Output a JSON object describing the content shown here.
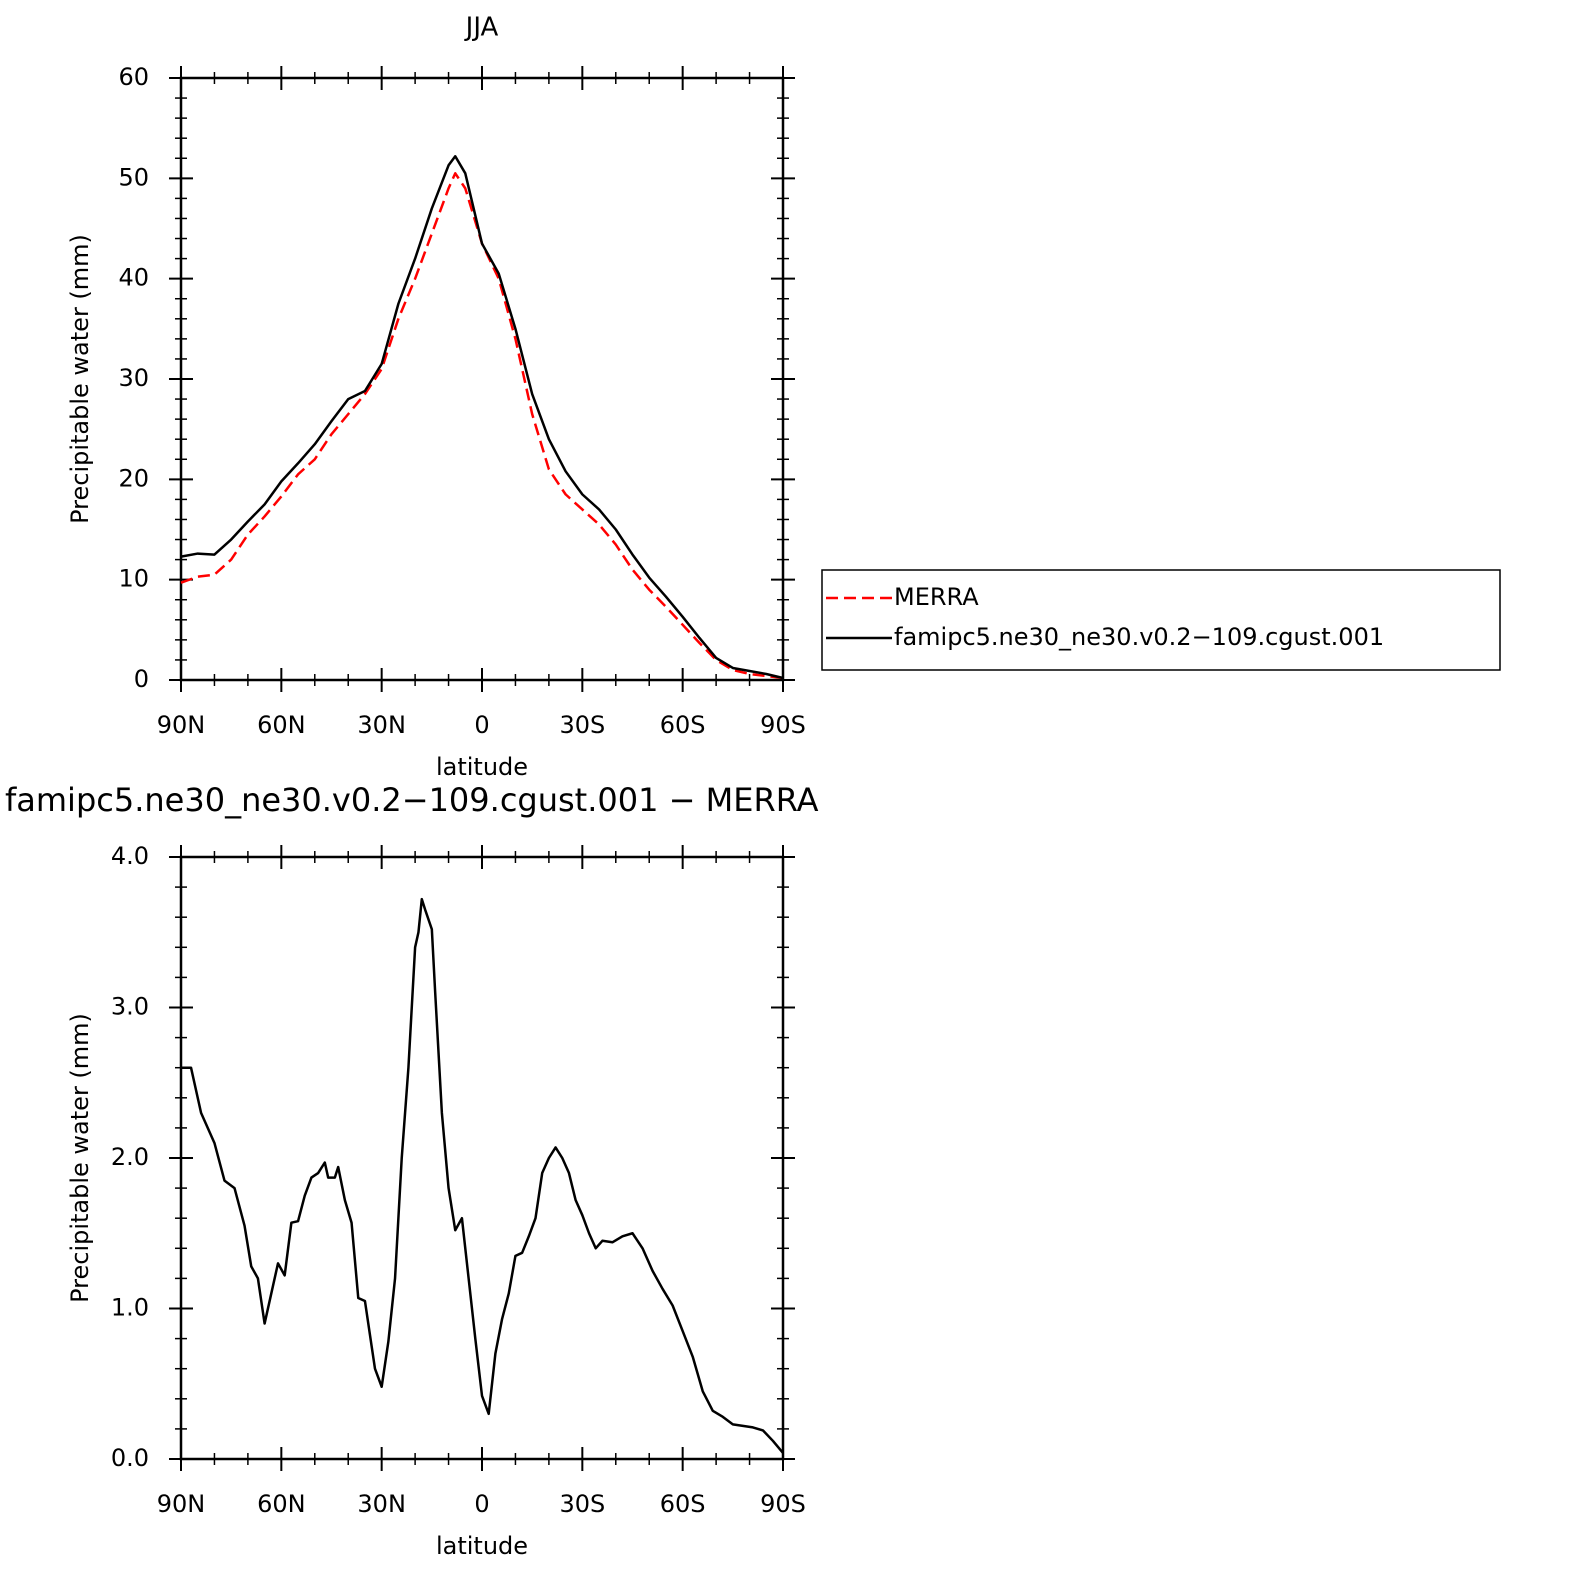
{
  "chart_data": [
    {
      "type": "line",
      "title": "JJA",
      "x_label": "latitude",
      "y_label": "Precipitable water (mm)",
      "x": [
        90,
        85,
        80,
        75,
        70,
        65,
        60,
        55,
        50,
        45,
        40,
        35,
        30,
        25,
        20,
        15,
        10,
        8,
        5,
        0,
        -5,
        -10,
        -15,
        -20,
        -25,
        -30,
        -35,
        -40,
        -45,
        -50,
        -55,
        -60,
        -65,
        -70,
        -75,
        -80,
        -85,
        -90
      ],
      "series": [
        {
          "name": "MERRA",
          "color": "#ff0000",
          "dash": true,
          "values": [
            9.7,
            10.3,
            10.5,
            12.0,
            14.5,
            16.3,
            18.3,
            20.5,
            22.0,
            24.5,
            26.5,
            28.5,
            31,
            36,
            40,
            44.5,
            49,
            50.5,
            49,
            43.5,
            40,
            34,
            26.5,
            21,
            18.5,
            17,
            15.5,
            13.5,
            11,
            9,
            7.3,
            5.5,
            3.7,
            2.0,
            1.0,
            0.6,
            0.4,
            0.2
          ]
        },
        {
          "name": "famipc5.ne30_ne30.v0.2−109.cgust.001",
          "color": "#000000",
          "dash": false,
          "values": [
            12.3,
            12.6,
            12.5,
            14.0,
            15.8,
            17.5,
            19.8,
            21.6,
            23.5,
            25.8,
            28.0,
            28.8,
            31.5,
            37.5,
            42.0,
            47.0,
            51.3,
            52.2,
            50.5,
            43.5,
            40.5,
            35,
            28.5,
            24,
            20.8,
            18.5,
            17,
            15,
            12.5,
            10.2,
            8.3,
            6.3,
            4.2,
            2.2,
            1.2,
            0.9,
            0.6,
            0.2
          ]
        }
      ],
      "xlim": [
        90,
        -90
      ],
      "xticks": [
        {
          "value": 90,
          "label": "90N"
        },
        {
          "value": 60,
          "label": "60N"
        },
        {
          "value": 30,
          "label": "30N"
        },
        0,
        {
          "value": -30,
          "label": "30S"
        },
        {
          "value": -60,
          "label": "60S"
        },
        {
          "value": -90,
          "label": "90S"
        }
      ],
      "ylim": [
        0,
        60
      ],
      "yticks": [
        0,
        10,
        20,
        30,
        40,
        50,
        60
      ],
      "legend": "right"
    },
    {
      "type": "line",
      "title": "famipc5.ne30_ne30.v0.2−109.cgust.001 − MERRA",
      "x_label": "latitude",
      "y_label": "Precipitable water (mm)",
      "x": [
        90,
        87,
        84,
        80,
        77,
        74,
        71,
        69,
        67,
        65,
        63,
        61,
        59,
        57,
        55,
        53,
        51,
        49,
        47,
        46,
        44,
        43,
        41,
        39,
        37,
        35,
        33,
        32,
        30,
        28,
        26,
        24,
        22,
        20,
        19,
        18,
        17,
        15,
        14,
        12,
        10,
        8,
        6,
        4,
        2,
        0,
        -2,
        -4,
        -6,
        -8,
        -10,
        -12,
        -14,
        -16,
        -18,
        -20,
        -22,
        -24,
        -26,
        -28,
        -30,
        -32,
        -34,
        -36,
        -39,
        -42,
        -45,
        -48,
        -51,
        -54,
        -57,
        -60,
        -63,
        -66,
        -69,
        -72,
        -75,
        -78,
        -81,
        -84,
        -87,
        -90
      ],
      "series": [
        {
          "name": "famipc5.ne30_ne30.v0.2−109.cgust.001 − MERRA",
          "color": "#000000",
          "dash": false,
          "values": [
            2.6,
            2.6,
            2.3,
            2.1,
            1.85,
            1.8,
            1.55,
            1.28,
            1.2,
            0.9,
            1.1,
            1.3,
            1.22,
            1.57,
            1.58,
            1.75,
            1.87,
            1.9,
            1.97,
            1.87,
            1.87,
            1.94,
            1.72,
            1.57,
            1.07,
            1.05,
            0.75,
            0.6,
            0.48,
            0.78,
            1.2,
            2.0,
            2.6,
            3.4,
            3.5,
            3.72,
            3.65,
            3.52,
            3.1,
            2.3,
            1.8,
            1.52,
            1.6,
            1.2,
            0.8,
            0.42,
            0.3,
            0.7,
            0.93,
            1.1,
            1.35,
            1.37,
            1.48,
            1.6,
            1.9,
            2.0,
            2.07,
            2.0,
            1.9,
            1.72,
            1.62,
            1.5,
            1.4,
            1.45,
            1.44,
            1.48,
            1.5,
            1.4,
            1.25,
            1.13,
            1.02,
            0.85,
            0.68,
            0.45,
            0.32,
            0.28,
            0.23,
            0.22,
            0.21,
            0.19,
            0.12,
            0.04
          ]
        }
      ],
      "xlim": [
        90,
        -90
      ],
      "xticks": [
        {
          "value": 90,
          "label": "90N"
        },
        {
          "value": 60,
          "label": "60N"
        },
        {
          "value": 30,
          "label": "30N"
        },
        0,
        {
          "value": -30,
          "label": "30S"
        },
        {
          "value": -60,
          "label": "60S"
        },
        {
          "value": -90,
          "label": "90S"
        }
      ],
      "ylim": [
        0,
        4
      ],
      "yticks": [
        {
          "value": 0,
          "label": "0.0"
        },
        {
          "value": 1,
          "label": "1.0"
        },
        {
          "value": 2,
          "label": "2.0"
        },
        {
          "value": 3,
          "label": "3.0"
        },
        {
          "value": 4,
          "label": "4.0"
        }
      ]
    }
  ]
}
